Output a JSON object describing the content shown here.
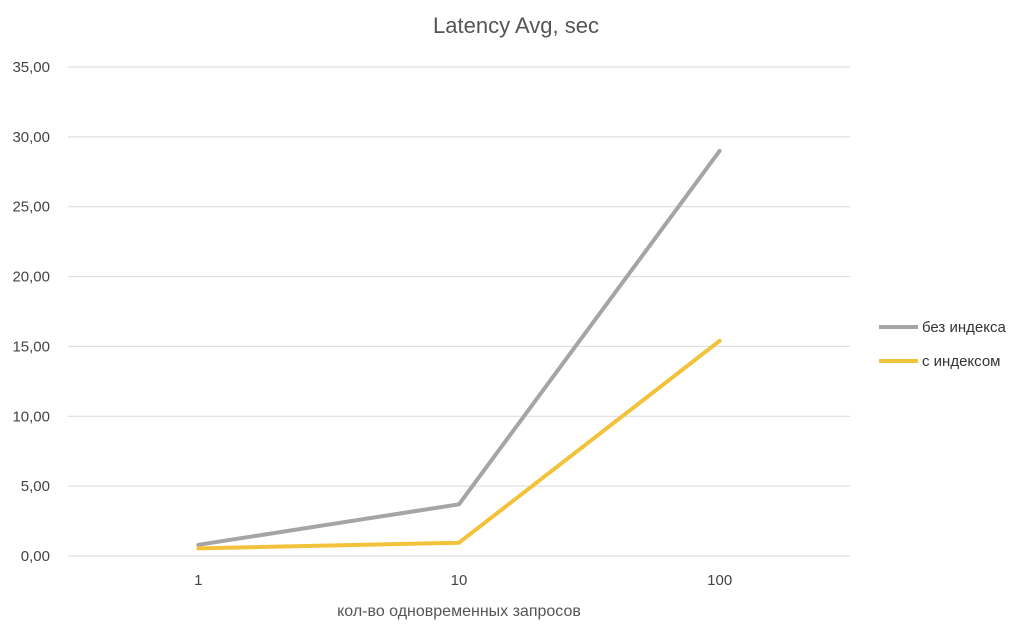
{
  "chart_data": {
    "type": "line",
    "title": "Latency Avg, sec",
    "xlabel": "кол-во одновременных запросов",
    "ylabel": "",
    "categories": [
      "1",
      "10",
      "100"
    ],
    "ylim": [
      0,
      35
    ],
    "yticks": [
      0,
      5,
      10,
      15,
      20,
      25,
      30,
      35
    ],
    "ytick_labels": [
      "0,00",
      "5,00",
      "10,00",
      "15,00",
      "20,00",
      "25,00",
      "30,00",
      "35,00"
    ],
    "grid": true,
    "legend_position": "right",
    "series": [
      {
        "name": "без индекса",
        "color": "#a5a5a5",
        "values": [
          0.8,
          3.7,
          29.0
        ]
      },
      {
        "name": "с индексом",
        "color": "#f2c23a",
        "values": [
          0.55,
          0.95,
          15.4
        ]
      }
    ]
  }
}
